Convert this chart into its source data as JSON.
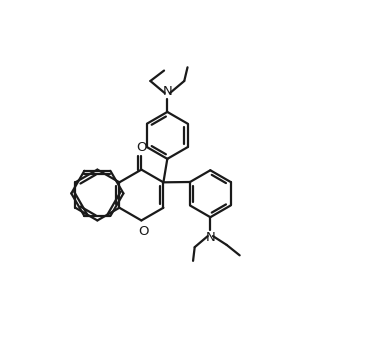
{
  "bg_color": "#ffffff",
  "line_color": "#1a1a1a",
  "line_width": 1.6,
  "fig_width": 3.87,
  "fig_height": 3.64,
  "dpi": 100,
  "xlim": [
    0,
    11
  ],
  "ylim": [
    0,
    11
  ]
}
